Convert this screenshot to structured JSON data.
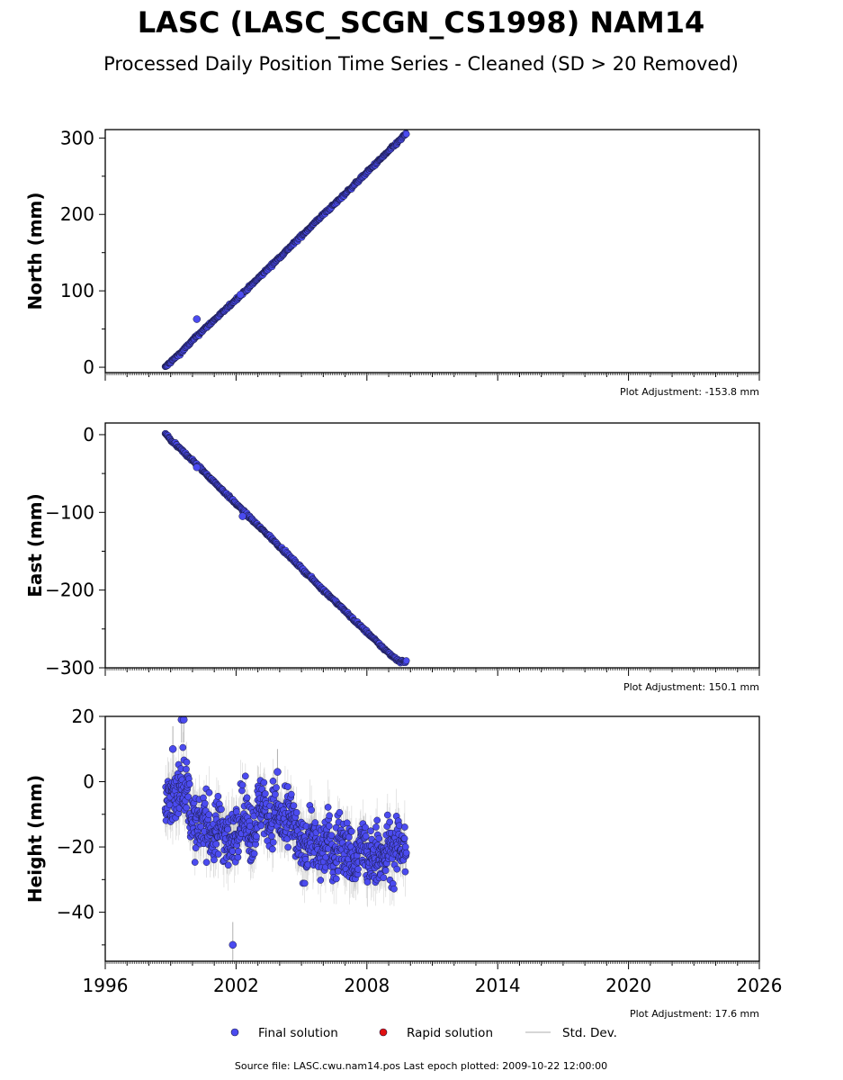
{
  "header": {
    "title": "LASC (LASC_SCGN_CS1998) NAM14",
    "subtitle": "Processed Daily Position Time Series - Cleaned (SD > 20 Removed)"
  },
  "footer": {
    "source": "Source file: LASC.cwu.nam14.pos  Last epoch plotted: 2009-10-22 12:00:00"
  },
  "colors": {
    "final": "#4b4bf0",
    "rapid": "#e01010",
    "stddev": "#b0b0b0",
    "marker_edge": "#1a1a40"
  },
  "chart_data": {
    "type": "scatter",
    "xlim": [
      1996,
      2026
    ],
    "xticks": [
      1996,
      2002,
      2008,
      2014,
      2020,
      2026
    ],
    "legend": {
      "position": "bottom-center",
      "entries": [
        "Final solution",
        "Rapid solution",
        "Std. Dev."
      ]
    },
    "panels": [
      {
        "id": "north",
        "ylabel": "North (mm)",
        "ylim": [
          -7,
          311
        ],
        "yticks": [
          0,
          100,
          200,
          300
        ],
        "yticklabels": [
          "0",
          "100",
          "200",
          "300"
        ],
        "adjustment": "Plot Adjustment: -153.8 mm",
        "series": [
          {
            "name": "Final solution",
            "x": [
              1998.75,
              1999.0,
              1999.5,
              2000.0,
              2000.5,
              2001.0,
              2001.5,
              2002.0,
              2002.5,
              2003.0,
              2003.5,
              2004.0,
              2004.5,
              2005.0,
              2005.5,
              2006.0,
              2006.5,
              2007.0,
              2007.5,
              2008.0,
              2008.5,
              2009.0,
              2009.5,
              2009.81
            ],
            "y": [
              0,
              7,
              20,
              35,
              49,
              62,
              75,
              89,
              102,
              116,
              130,
              144,
              158,
              172,
              186,
              200,
              213,
              227,
              241,
              255,
              269,
              283,
              297,
              306
            ]
          }
        ],
        "outliers": {
          "x": [
            2000.2,
            2002.2
          ],
          "y": [
            63,
            95
          ]
        }
      },
      {
        "id": "east",
        "ylabel": "East (mm)",
        "ylim": [
          -300,
          15
        ],
        "yticks": [
          0,
          -100,
          -200,
          -300
        ],
        "yticklabels": [
          "0",
          "−100",
          "−200",
          "−300"
        ],
        "adjustment": "Plot Adjustment: 150.1 mm",
        "series": [
          {
            "name": "Final solution",
            "x": [
              1998.75,
              1999.0,
              1999.5,
              2000.0,
              2000.5,
              2001.0,
              2001.5,
              2002.0,
              2002.5,
              2003.0,
              2003.5,
              2004.0,
              2004.5,
              2005.0,
              2005.5,
              2006.0,
              2006.5,
              2007.0,
              2007.5,
              2008.0,
              2008.5,
              2009.0,
              2009.5,
              2009.81
            ],
            "y": [
              2,
              -7,
              -20,
              -33,
              -47,
              -61,
              -75,
              -89,
              -103,
              -117,
              -130,
              -144,
              -158,
              -172,
              -186,
              -200,
              -213,
              -227,
              -241,
              -254,
              -268,
              -281,
              -292,
              -292
            ]
          }
        ],
        "outliers": {
          "x": [
            2000.2,
            2002.3
          ],
          "y": [
            -42,
            -105
          ]
        }
      },
      {
        "id": "height",
        "ylabel": "Height (mm)",
        "ylim": [
          -55,
          20
        ],
        "yticks": [
          20,
          0,
          -20,
          -40
        ],
        "yticklabels": [
          "20",
          "0",
          "−20",
          "−40"
        ],
        "adjustment": "Plot Adjustment: 17.6 mm",
        "series": [
          {
            "name": "Final solution",
            "x": [
              1998.75,
              1999.0,
              1999.25,
              1999.5,
              1999.75,
              2000.0,
              2000.25,
              2000.5,
              2000.75,
              2001.0,
              2001.25,
              2001.5,
              2001.75,
              2002.0,
              2002.25,
              2002.5,
              2002.75,
              2003.0,
              2003.25,
              2003.5,
              2003.75,
              2004.0,
              2004.25,
              2004.5,
              2004.75,
              2005.0,
              2005.25,
              2005.5,
              2005.75,
              2006.0,
              2006.25,
              2006.5,
              2006.75,
              2007.0,
              2007.25,
              2007.5,
              2007.75,
              2008.0,
              2008.25,
              2008.5,
              2008.75,
              2009.0,
              2009.25,
              2009.5,
              2009.81
            ],
            "y": [
              -8,
              -4,
              -6,
              2,
              -3,
              -12,
              -16,
              -10,
              -14,
              -18,
              -12,
              -16,
              -20,
              -14,
              -10,
              -12,
              -17,
              -9,
              -6,
              -13,
              -8,
              -11,
              -15,
              -10,
              -17,
              -21,
              -19,
              -15,
              -23,
              -20,
              -18,
              -24,
              -17,
              -21,
              -22,
              -26,
              -18,
              -24,
              -25,
              -20,
              -26,
              -19,
              -23,
              -18,
              -22
            ]
          }
        ],
        "outliers": {
          "x": [
            1999.1,
            1999.5,
            1999.6,
            2001.85,
            2003.9
          ],
          "y": [
            10,
            19,
            19,
            -50,
            3
          ]
        }
      }
    ]
  }
}
